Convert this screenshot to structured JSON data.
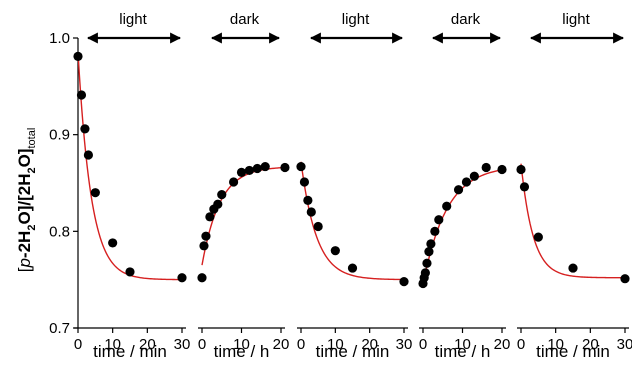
{
  "chart_data": {
    "type": "scatter",
    "ylabel": "[p-2H2O]/[2H2O]total",
    "ylabel_parts": [
      "[",
      "p",
      "-2H",
      "2",
      "O]/[2H",
      "2",
      "O]",
      "total"
    ],
    "ylim": [
      0.7,
      1.0
    ],
    "yticks": [
      0.7,
      0.8,
      0.9,
      1.0
    ],
    "ytick_labels": [
      "0.7",
      "0.8",
      "0.9",
      "1.0"
    ],
    "colors": {
      "points": "#000000",
      "fit": "#d62020",
      "axes": "#000000"
    },
    "panels": [
      {
        "phase": "light",
        "xlabel": "time / min",
        "xlim": [
          0,
          30
        ],
        "xticks": [
          0,
          10,
          20,
          30
        ],
        "xtick_labels": [
          "0",
          "10",
          "20",
          "30"
        ],
        "points": [
          [
            0,
            0.981
          ],
          [
            1,
            0.941
          ],
          [
            2,
            0.906
          ],
          [
            3,
            0.879
          ],
          [
            5,
            0.84
          ],
          [
            10,
            0.788
          ],
          [
            15,
            0.758
          ],
          [
            30,
            0.752
          ]
        ],
        "fit": {
          "kind": "decay",
          "start": 0.985,
          "end": 0.75,
          "tau": 3.8
        }
      },
      {
        "phase": "dark",
        "xlabel": "time / h",
        "xlim": [
          0,
          20
        ],
        "xticks": [
          0,
          10,
          20
        ],
        "xtick_labels": [
          "0",
          "10",
          "20"
        ],
        "points": [
          [
            0,
            0.752
          ],
          [
            0.5,
            0.785
          ],
          [
            1,
            0.795
          ],
          [
            2,
            0.815
          ],
          [
            3,
            0.823
          ],
          [
            4,
            0.828
          ],
          [
            5,
            0.838
          ],
          [
            8,
            0.851
          ],
          [
            10,
            0.861
          ],
          [
            12,
            0.863
          ],
          [
            14,
            0.865
          ],
          [
            16,
            0.867
          ],
          [
            21,
            0.866
          ]
        ],
        "fit": {
          "kind": "rise",
          "start": 0.765,
          "end": 0.867,
          "tau": 4.5
        }
      },
      {
        "phase": "light",
        "xlabel": "time / min",
        "xlim": [
          0,
          30
        ],
        "xticks": [
          0,
          10,
          20,
          30
        ],
        "xtick_labels": [
          "0",
          "10",
          "20",
          "30"
        ],
        "points": [
          [
            0,
            0.867
          ],
          [
            1,
            0.851
          ],
          [
            2,
            0.832
          ],
          [
            3,
            0.82
          ],
          [
            5,
            0.805
          ],
          [
            10,
            0.78
          ],
          [
            15,
            0.762
          ],
          [
            30,
            0.748
          ]
        ],
        "fit": {
          "kind": "decay",
          "start": 0.872,
          "end": 0.75,
          "tau": 4.5
        }
      },
      {
        "phase": "dark",
        "xlabel": "time / h",
        "xlim": [
          0,
          20
        ],
        "xticks": [
          0,
          10,
          20
        ],
        "xtick_labels": [
          "0",
          "10",
          "20"
        ],
        "points": [
          [
            0,
            0.746
          ],
          [
            0.3,
            0.752
          ],
          [
            0.6,
            0.757
          ],
          [
            1,
            0.767
          ],
          [
            1.5,
            0.779
          ],
          [
            2,
            0.787
          ],
          [
            3,
            0.8
          ],
          [
            4,
            0.812
          ],
          [
            6,
            0.826
          ],
          [
            9,
            0.843
          ],
          [
            11,
            0.851
          ],
          [
            13,
            0.857
          ],
          [
            16,
            0.866
          ],
          [
            20,
            0.864
          ]
        ],
        "fit": {
          "kind": "rise",
          "start": 0.745,
          "end": 0.868,
          "tau": 6.0
        }
      },
      {
        "phase": "light",
        "xlabel": "time / min",
        "xlim": [
          0,
          30
        ],
        "xticks": [
          0,
          10,
          20,
          30
        ],
        "xtick_labels": [
          "0",
          "10",
          "20",
          "30"
        ],
        "points": [
          [
            0,
            0.864
          ],
          [
            1,
            0.846
          ],
          [
            5,
            0.794
          ],
          [
            15,
            0.762
          ],
          [
            30,
            0.751
          ]
        ],
        "fit": {
          "kind": "decay",
          "start": 0.87,
          "end": 0.752,
          "tau": 3.5
        }
      }
    ]
  }
}
